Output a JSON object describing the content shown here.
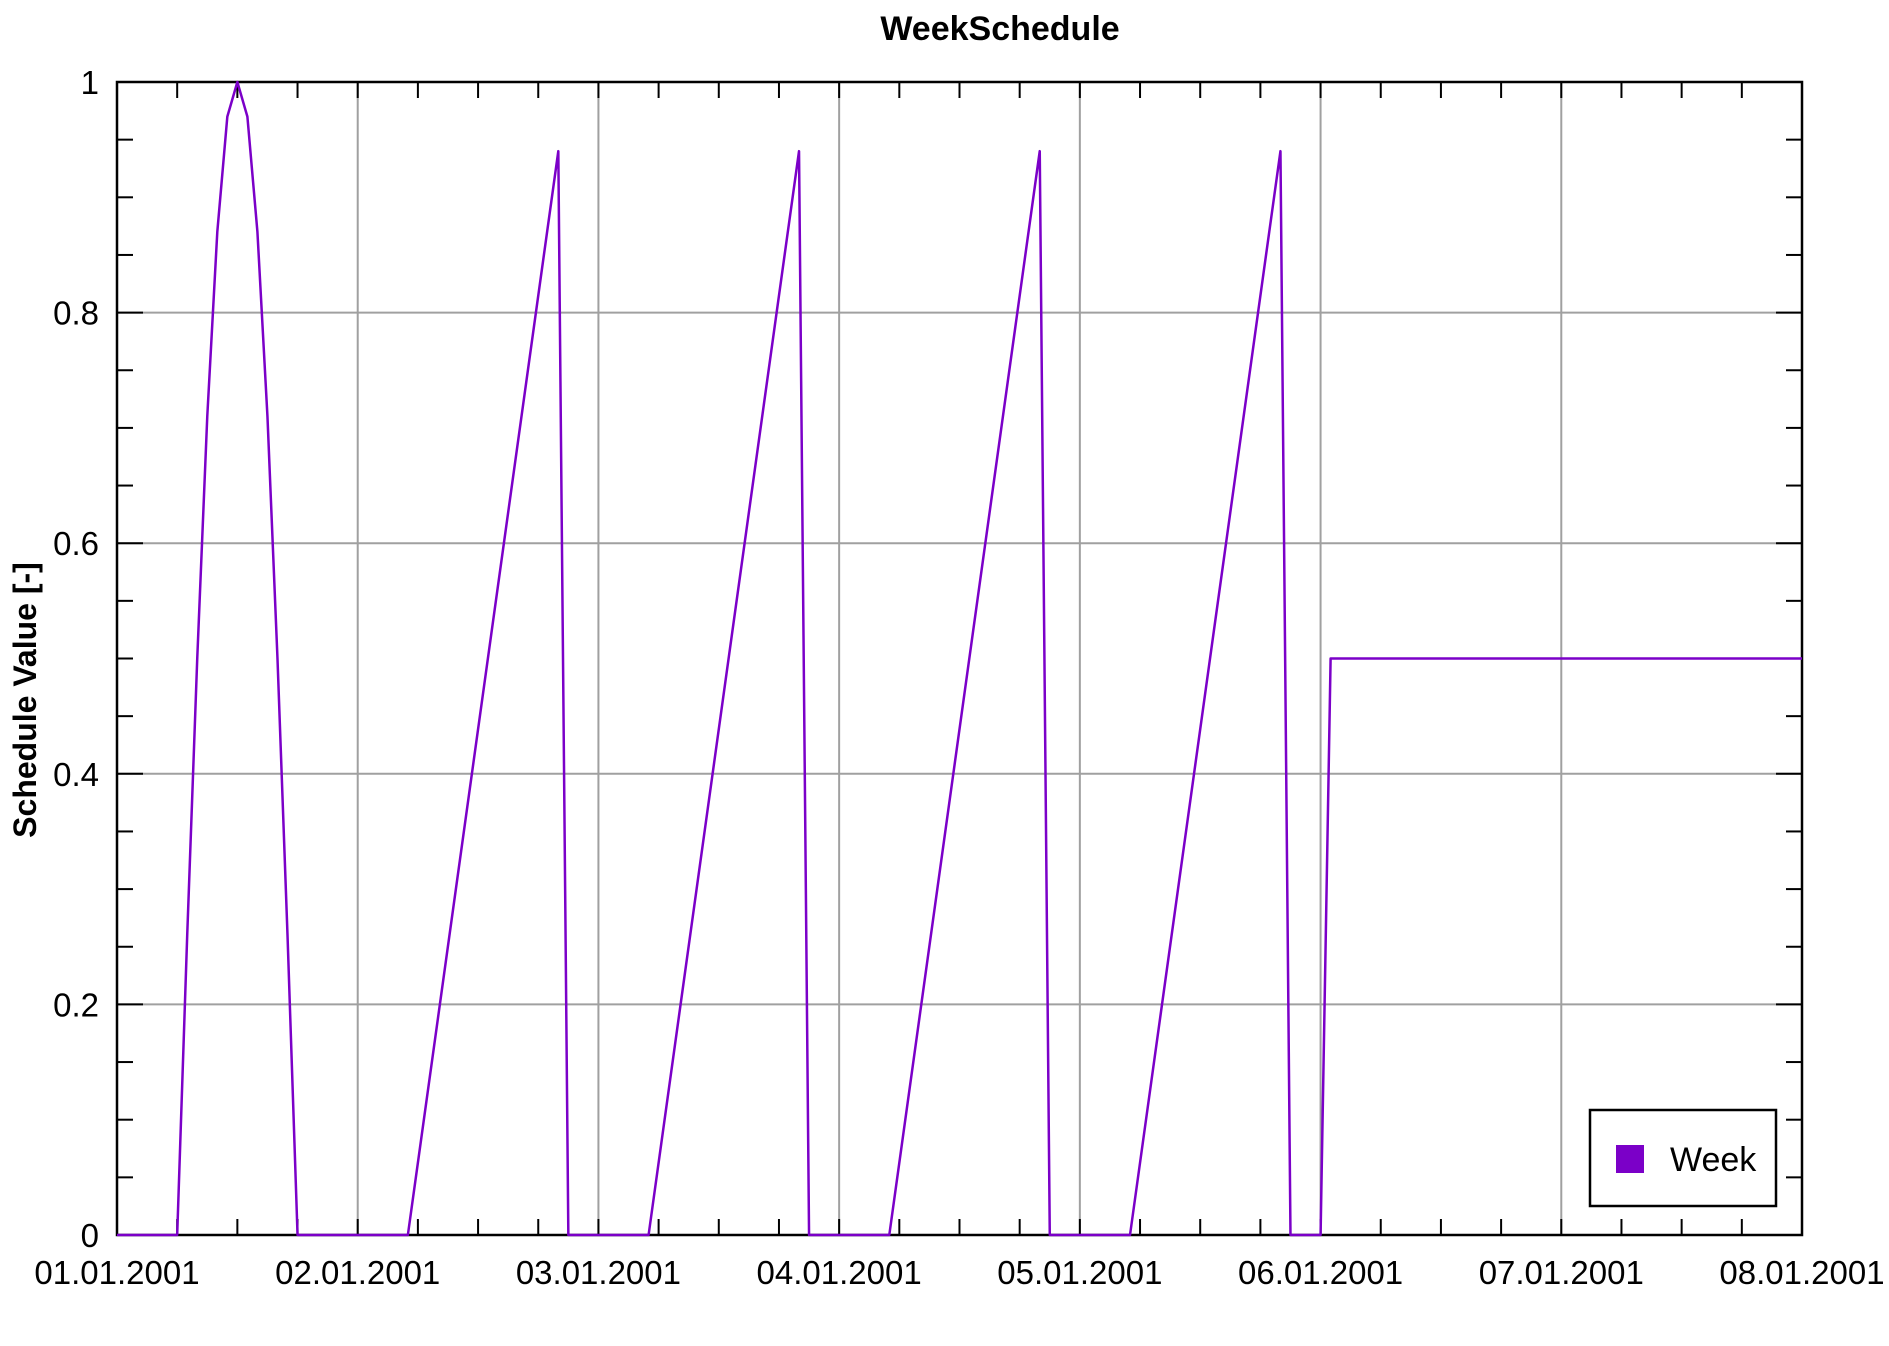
{
  "chart_data": {
    "type": "line",
    "title": "WeekSchedule",
    "xlabel": "",
    "ylabel": "Schedule Value [-]",
    "x_ticks": [
      "01.01.2001",
      "02.01.2001",
      "03.01.2001",
      "04.01.2001",
      "05.01.2001",
      "06.01.2001",
      "07.01.2001",
      "08.01.2001"
    ],
    "y_ticks": [
      "0",
      "0.2",
      "0.4",
      "0.6",
      "0.8",
      "1"
    ],
    "xlim": [
      "01.01.2001 00:00",
      "08.01.2001 00:00"
    ],
    "ylim": [
      0,
      1
    ],
    "grid": true,
    "legend_position": "bottom-right",
    "colors": {
      "series": "#7b00c8",
      "grid": "#a0a0a0",
      "axis": "#000000"
    },
    "series": [
      {
        "name": "Week",
        "points": [
          [
            "01.01.2001 00:00",
            0
          ],
          [
            "01.01.2001 06:00",
            0
          ],
          [
            "01.01.2001 07:00",
            0.26
          ],
          [
            "01.01.2001 08:00",
            0.5
          ],
          [
            "01.01.2001 09:00",
            0.71
          ],
          [
            "01.01.2001 10:00",
            0.87
          ],
          [
            "01.01.2001 11:00",
            0.97
          ],
          [
            "01.01.2001 12:00",
            1.0
          ],
          [
            "01.01.2001 13:00",
            0.97
          ],
          [
            "01.01.2001 14:00",
            0.87
          ],
          [
            "01.01.2001 15:00",
            0.71
          ],
          [
            "01.01.2001 16:00",
            0.5
          ],
          [
            "01.01.2001 17:00",
            0.26
          ],
          [
            "01.01.2001 18:00",
            0
          ],
          [
            "02.01.2001 05:00",
            0
          ],
          [
            "02.01.2001 20:00",
            0.94
          ],
          [
            "02.01.2001 21:00",
            0
          ],
          [
            "03.01.2001 05:00",
            0
          ],
          [
            "03.01.2001 20:00",
            0.94
          ],
          [
            "03.01.2001 21:00",
            0
          ],
          [
            "04.01.2001 05:00",
            0
          ],
          [
            "04.01.2001 20:00",
            0.94
          ],
          [
            "04.01.2001 21:00",
            0
          ],
          [
            "05.01.2001 05:00",
            0
          ],
          [
            "05.01.2001 20:00",
            0.94
          ],
          [
            "05.01.2001 21:00",
            0
          ],
          [
            "06.01.2001 00:00",
            0
          ],
          [
            "06.01.2001 01:00",
            0.5
          ],
          [
            "08.01.2001 00:00",
            0.5
          ]
        ]
      }
    ]
  }
}
